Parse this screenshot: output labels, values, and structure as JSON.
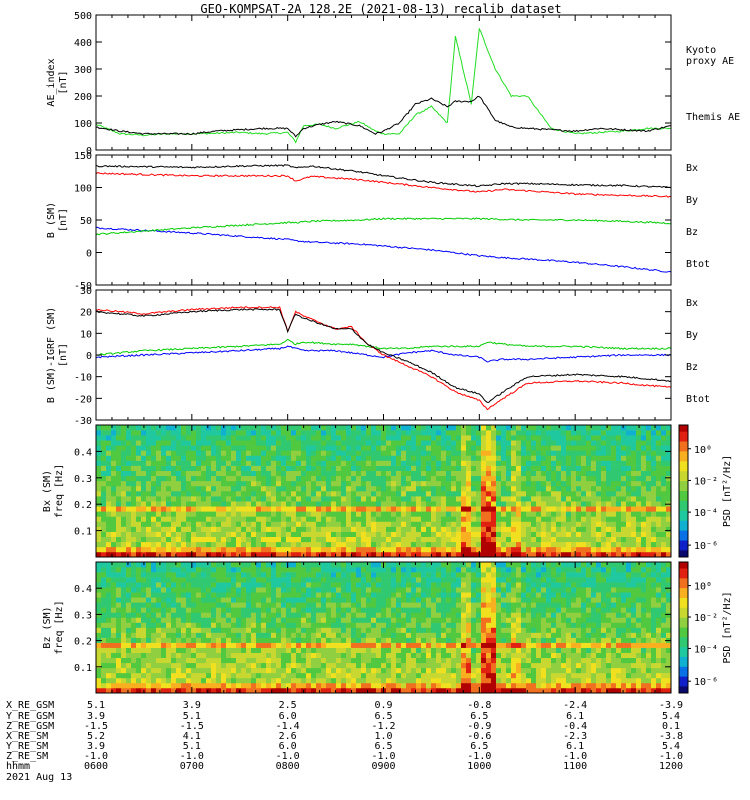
{
  "title": "GEO-KOMPSAT-2A 128.2E (2021-08-13) recalib dataset",
  "colors": {
    "bx": "#0000ff",
    "by": "#00cc00",
    "bz": "#ff0000",
    "btot": "#000000",
    "kyoto": "#22dd22"
  },
  "chart_data": [
    {
      "type": "line",
      "ylabel": "AE_index\n[nT]",
      "ylim": [
        0,
        500
      ],
      "yticks": [
        "0",
        "100",
        "200",
        "300",
        "400",
        "500"
      ],
      "legend": [
        "Kyoto\nproxy AE",
        "Themis AE"
      ],
      "x": [
        "06:00",
        "06:15",
        "06:30",
        "06:45",
        "07:00",
        "07:15",
        "07:30",
        "07:45",
        "08:00",
        "08:05",
        "08:10",
        "08:20",
        "08:30",
        "08:45",
        "08:55",
        "09:00",
        "09:10",
        "09:20",
        "09:30",
        "09:40",
        "09:45",
        "09:55",
        "10:00",
        "10:10",
        "10:20",
        "10:30",
        "10:45",
        "11:00",
        "11:15",
        "11:30",
        "11:45",
        "12:00"
      ],
      "series": [
        {
          "name": "Kyoto proxy AE",
          "values": [
            95,
            60,
            55,
            60,
            60,
            62,
            65,
            60,
            65,
            30,
            90,
            95,
            80,
            105,
            70,
            60,
            60,
            130,
            160,
            100,
            420,
            170,
            450,
            300,
            200,
            200,
            80,
            60,
            65,
            70,
            80,
            80
          ]
        },
        {
          "name": "Themis AE",
          "values": [
            85,
            70,
            60,
            60,
            60,
            70,
            75,
            80,
            80,
            50,
            80,
            95,
            105,
            90,
            60,
            70,
            100,
            170,
            190,
            160,
            180,
            180,
            200,
            110,
            85,
            80,
            75,
            70,
            80,
            75,
            70,
            90
          ]
        }
      ]
    },
    {
      "type": "line",
      "ylabel": "B (SM)\n[nT]",
      "ylim": [
        -50,
        150
      ],
      "yticks": [
        "-50",
        "0",
        "50",
        "100",
        "150"
      ],
      "legend": [
        "Bx",
        "By",
        "Bz",
        "Btot"
      ],
      "x": [
        "06:00",
        "06:30",
        "07:00",
        "07:30",
        "08:00",
        "08:05",
        "08:15",
        "08:45",
        "09:00",
        "09:30",
        "10:00",
        "10:15",
        "10:30",
        "11:00",
        "11:30",
        "12:00"
      ],
      "series": [
        {
          "name": "Bx",
          "values": [
            38,
            34,
            30,
            25,
            20,
            18,
            16,
            13,
            10,
            4,
            -5,
            -8,
            -10,
            -15,
            -22,
            -30
          ]
        },
        {
          "name": "By",
          "values": [
            28,
            33,
            38,
            42,
            46,
            46,
            48,
            50,
            52,
            52,
            52,
            51,
            50,
            50,
            48,
            45
          ]
        },
        {
          "name": "Bz",
          "values": [
            122,
            120,
            118,
            118,
            118,
            110,
            117,
            112,
            108,
            100,
            93,
            97,
            95,
            90,
            88,
            86
          ]
        },
        {
          "name": "Btot",
          "values": [
            133,
            132,
            131,
            133,
            134,
            130,
            133,
            124,
            118,
            108,
            102,
            106,
            106,
            104,
            103,
            100
          ]
        }
      ]
    },
    {
      "type": "line",
      "ylabel": "B (SM)-IGRF (SM)\n[nT]",
      "ylim": [
        -30,
        30
      ],
      "yticks": [
        "-30",
        "-20",
        "-10",
        "0",
        "10",
        "20",
        "30"
      ],
      "legend": [
        "Bx",
        "By",
        "Bz",
        "Btot"
      ],
      "x": [
        "06:00",
        "06:30",
        "07:00",
        "07:30",
        "07:55",
        "08:00",
        "08:05",
        "08:10",
        "08:30",
        "08:40",
        "08:50",
        "09:00",
        "09:15",
        "09:30",
        "09:45",
        "10:00",
        "10:05",
        "10:15",
        "10:30",
        "11:00",
        "11:30",
        "12:00"
      ],
      "series": [
        {
          "name": "Bx",
          "values": [
            -1,
            0,
            1,
            2,
            3,
            4,
            3,
            2,
            2,
            1,
            0,
            -1,
            1,
            2,
            0,
            -1,
            -3,
            -2,
            -2,
            -1,
            0,
            0
          ]
        },
        {
          "name": "By",
          "values": [
            0,
            2,
            3,
            4,
            5,
            7,
            5,
            6,
            5,
            5,
            4,
            3,
            3,
            4,
            4,
            4,
            6,
            5,
            4,
            4,
            3,
            3
          ]
        },
        {
          "name": "Bz",
          "values": [
            21,
            19,
            21,
            22,
            22,
            11,
            20,
            18,
            12,
            13,
            5,
            0,
            -5,
            -10,
            -17,
            -21,
            -25,
            -20,
            -13,
            -12,
            -13,
            -15
          ]
        },
        {
          "name": "Btot",
          "values": [
            20,
            18,
            20,
            21,
            21,
            11,
            19,
            17,
            12,
            12,
            5,
            1,
            -3,
            -8,
            -15,
            -18,
            -22,
            -17,
            -10,
            -9,
            -10,
            -12
          ]
        }
      ]
    },
    {
      "type": "heatmap",
      "ylabel": "Bx (SM)\nfreq [Hz]",
      "ylim": [
        0,
        0.5
      ],
      "yticks": [
        "0.1",
        "0.2",
        "0.3",
        "0.4"
      ],
      "colorbar_label": "PSD [nT²/Hz]",
      "colorbar_ticks": [
        "10⁰",
        "10⁻²",
        "10⁻⁴",
        "10⁻⁶"
      ]
    },
    {
      "type": "heatmap",
      "ylabel": "Bz (SM)\nfreq [Hz]",
      "ylim": [
        0,
        0.5
      ],
      "yticks": [
        "0.1",
        "0.2",
        "0.3",
        "0.4"
      ],
      "colorbar_label": "PSD [nT²/Hz]",
      "colorbar_ticks": [
        "10⁰",
        "10⁻²",
        "10⁻⁴",
        "10⁻⁶"
      ]
    }
  ],
  "ephemeris": {
    "labels": [
      "X_RE_GSM",
      "Y_RE_GSM",
      "Z_RE_GSM",
      "X_RE_SM",
      "Y_RE_SM",
      "Z_RE_SM",
      "hhmm"
    ],
    "columns": [
      [
        "5.1",
        "3.9",
        "-1.5",
        "5.2",
        "3.9",
        "-1.0",
        "0600"
      ],
      [
        "3.9",
        "5.1",
        "-1.5",
        "4.1",
        "5.1",
        "-1.0",
        "0700"
      ],
      [
        "2.5",
        "6.0",
        "-1.4",
        "2.6",
        "6.0",
        "-1.0",
        "0800"
      ],
      [
        "0.9",
        "6.5",
        "-1.2",
        "1.0",
        "6.5",
        "-1.0",
        "0900"
      ],
      [
        "-0.8",
        "6.5",
        "-0.9",
        "-0.6",
        "6.5",
        "-1.0",
        "1000"
      ],
      [
        "-2.4",
        "6.1",
        "-0.4",
        "-2.3",
        "6.1",
        "-1.0",
        "1100"
      ],
      [
        "-3.9",
        "5.4",
        "0.1",
        "-3.8",
        "5.4",
        "-1.0",
        "1200"
      ]
    ],
    "date": "2021 Aug 13"
  }
}
